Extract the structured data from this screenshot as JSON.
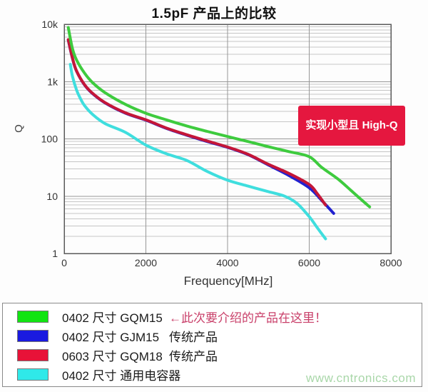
{
  "title": "1.5pF 产品上的比较",
  "badge": {
    "label": "实现小型且 High-Q",
    "color": "#e5173f"
  },
  "watermark": "www.cntronics.com",
  "colors": {
    "accent_red": "#c9406a",
    "badge_red": "#e5173f",
    "watermark_green": "#a9d7a9",
    "grid_minor": "#c6c6c6",
    "grid_major": "#979797",
    "frame": "#5a5a5a"
  },
  "chart_data": {
    "type": "line",
    "title": "1.5pF 产品上的比较",
    "xlabel": "Frequency[MHz]",
    "ylabel": "Q",
    "xlim": [
      0,
      8000
    ],
    "ylim": [
      1,
      10000
    ],
    "y_scale": "log",
    "grid": true,
    "legend_position": "bottom",
    "x_ticks": [
      0,
      2000,
      4000,
      6000,
      8000
    ],
    "x_tick_labels": [
      "0",
      "2000",
      "4000",
      "6000",
      "8000"
    ],
    "y_ticks": [
      1,
      10,
      100,
      1000,
      10000
    ],
    "y_tick_labels": [
      "1",
      "10",
      "100",
      "1k",
      "10k"
    ],
    "series": [
      {
        "id": "generic-0402",
        "name": "0402 尺寸 通用电容器",
        "color": "#3fdede",
        "width": 4,
        "points": [
          [
            150,
            2000
          ],
          [
            200,
            1250
          ],
          [
            300,
            720
          ],
          [
            400,
            500
          ],
          [
            500,
            380
          ],
          [
            700,
            265
          ],
          [
            1000,
            185
          ],
          [
            1500,
            130
          ],
          [
            2000,
            78
          ],
          [
            2500,
            55
          ],
          [
            3000,
            42
          ],
          [
            3500,
            27
          ],
          [
            4000,
            19
          ],
          [
            4500,
            15
          ],
          [
            5000,
            12
          ],
          [
            5400,
            10
          ],
          [
            5700,
            7.5
          ],
          [
            6000,
            4.4
          ],
          [
            6200,
            2.8
          ],
          [
            6400,
            1.8
          ]
        ]
      },
      {
        "id": "gjm15-0402",
        "name": "0402 尺寸 GJM15 传统产品",
        "color": "#2121cf",
        "width": 4,
        "points": [
          [
            100,
            5300
          ],
          [
            200,
            2560
          ],
          [
            300,
            1530
          ],
          [
            500,
            870
          ],
          [
            700,
            612
          ],
          [
            1000,
            425
          ],
          [
            1500,
            281
          ],
          [
            2000,
            212
          ],
          [
            2500,
            153
          ],
          [
            3000,
            116
          ],
          [
            3500,
            90
          ],
          [
            4000,
            71
          ],
          [
            4500,
            53
          ],
          [
            5000,
            35
          ],
          [
            5500,
            23
          ],
          [
            6000,
            14
          ],
          [
            6300,
            8.5
          ],
          [
            6600,
            5
          ]
        ]
      },
      {
        "id": "gqm18-0603",
        "name": "0603 尺寸 GQM18 传统产品",
        "color": "#c41638",
        "width": 4,
        "points": [
          [
            100,
            5400
          ],
          [
            200,
            2600
          ],
          [
            300,
            1550
          ],
          [
            500,
            880
          ],
          [
            700,
            620
          ],
          [
            1000,
            430
          ],
          [
            1500,
            285
          ],
          [
            2000,
            215
          ],
          [
            2500,
            155
          ],
          [
            3000,
            118
          ],
          [
            3500,
            92
          ],
          [
            4000,
            72
          ],
          [
            4500,
            54
          ],
          [
            5000,
            36
          ],
          [
            5500,
            25
          ],
          [
            6000,
            16
          ],
          [
            6200,
            11
          ],
          [
            6400,
            7
          ]
        ]
      },
      {
        "id": "gqm15-0402",
        "name": "0402 尺寸 GQM15",
        "color": "#3ecb3e",
        "width": 4,
        "points": [
          [
            100,
            8800
          ],
          [
            200,
            3800
          ],
          [
            300,
            2400
          ],
          [
            500,
            1400
          ],
          [
            700,
            950
          ],
          [
            1000,
            640
          ],
          [
            1500,
            400
          ],
          [
            2000,
            280
          ],
          [
            2500,
            215
          ],
          [
            3000,
            168
          ],
          [
            3500,
            135
          ],
          [
            4000,
            110
          ],
          [
            4500,
            90
          ],
          [
            5000,
            73
          ],
          [
            5500,
            60
          ],
          [
            6000,
            49
          ],
          [
            6300,
            32
          ],
          [
            6700,
            20
          ],
          [
            7000,
            13
          ],
          [
            7250,
            9
          ],
          [
            7480,
            6.5
          ]
        ]
      }
    ]
  },
  "legend": {
    "items": [
      {
        "color": "#12e412",
        "model": "0402 尺寸 GQM15",
        "note": "←此次要介绍的产品在这里！"
      },
      {
        "color": "#1a1ae0",
        "model": "0402 尺寸 GJM15",
        "note": "传统产品"
      },
      {
        "color": "#e81238",
        "model": "0603 尺寸 GQM18",
        "note": "传统产品"
      },
      {
        "color": "#2fe9e9",
        "model": "0402 尺寸 通用电容器",
        "note": ""
      }
    ]
  }
}
